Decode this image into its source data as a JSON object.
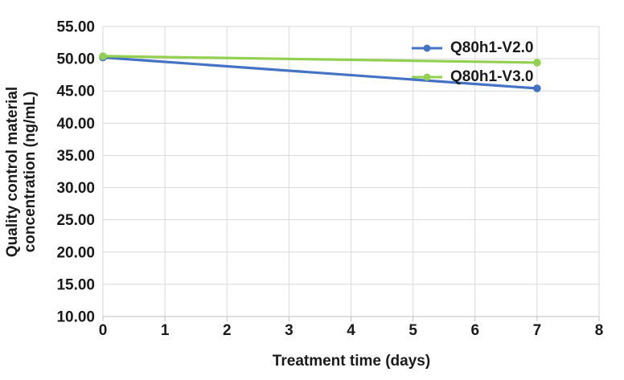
{
  "chart_data": {
    "type": "line",
    "title": "",
    "xlabel": "Treatment time (days)",
    "ylabel": "Quality control material concentration (ng/mL)",
    "ylabel_line1": "Quality control material",
    "ylabel_line2": "concentration (ng/mL)",
    "x": [
      0,
      7
    ],
    "series": [
      {
        "name": "Q80h1-V2.0",
        "color": "#4472C4",
        "values": [
          50.2,
          45.4
        ]
      },
      {
        "name": "Q80h1-V3.0",
        "color": "#92D050",
        "values": [
          50.4,
          49.4
        ]
      }
    ],
    "xlim": [
      0,
      8
    ],
    "ylim": [
      10,
      55
    ],
    "x_tick_step": 1,
    "y_tick_step": 5,
    "x_ticks": [
      "0",
      "1",
      "2",
      "3",
      "4",
      "5",
      "6",
      "7",
      "8"
    ],
    "y_ticks": [
      "10.00",
      "15.00",
      "20.00",
      "25.00",
      "30.00",
      "35.00",
      "40.00",
      "45.00",
      "50.00",
      "55.00"
    ],
    "grid": true,
    "gridline_color": "#D9D9D9",
    "axis_line_color": "#BFBFBF",
    "tick_label_color": "#1a1a1a",
    "legend_position": "inside-top-right",
    "marker": "circle"
  }
}
